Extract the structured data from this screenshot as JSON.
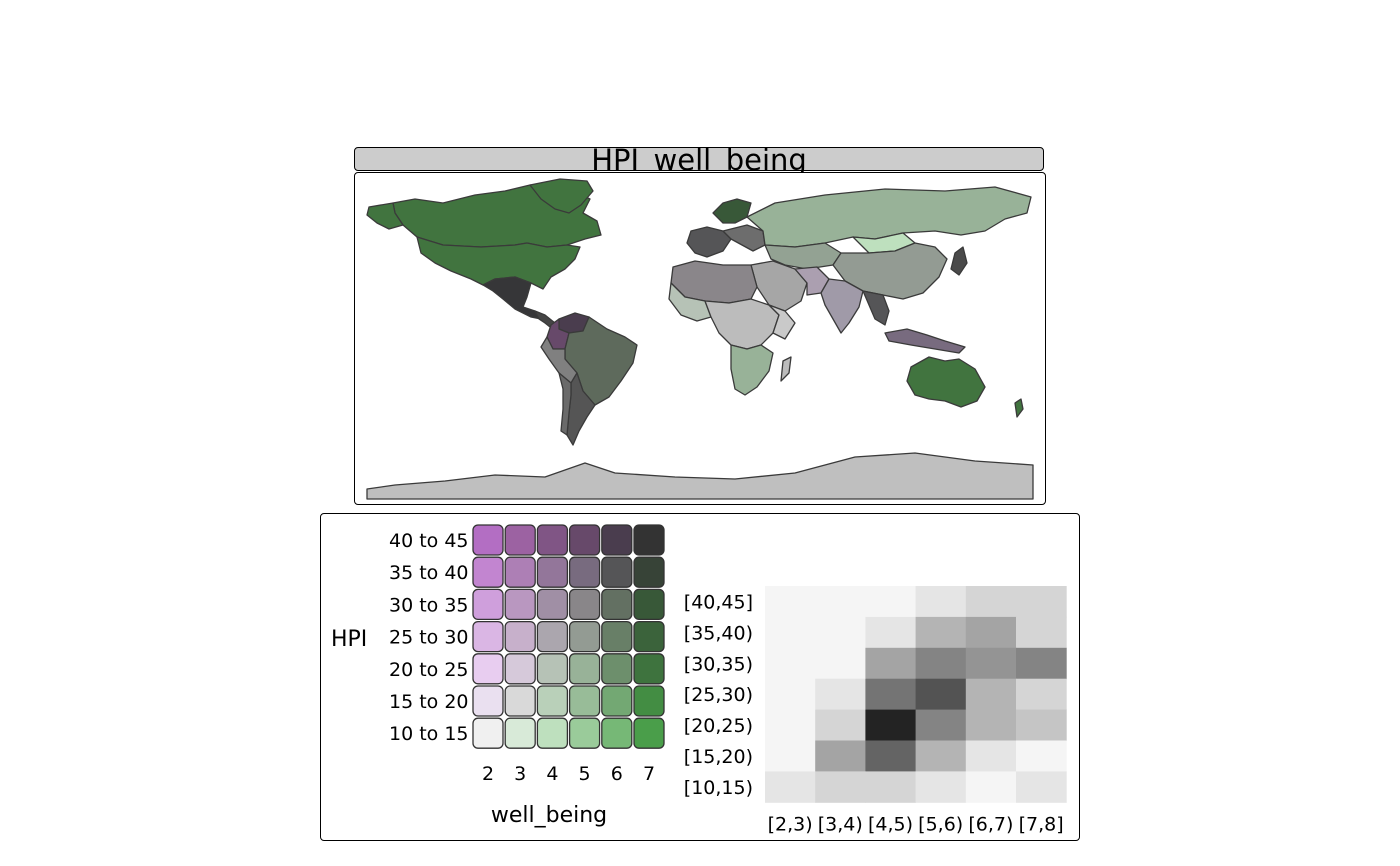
{
  "map": {
    "title": "HPI_well_being"
  },
  "legend": {
    "y_title": "HPI",
    "x_title": "well_being",
    "row_labels": [
      "40 to 45",
      "35 to 40",
      "30 to 35",
      "25 to 30",
      "20 to 25",
      "15 to 20",
      "10 to 15"
    ],
    "col_labels": [
      "2",
      "3",
      "4",
      "5",
      "6",
      "7"
    ],
    "palette": [
      [
        "#b36ec3",
        "#9c62a2",
        "#805585",
        "#67496a",
        "#4a3d4e",
        "#333333"
      ],
      [
        "#c285d0",
        "#ad7fb5",
        "#93769a",
        "#786b7f",
        "#555557",
        "#374337"
      ],
      [
        "#cf9fdc",
        "#b997c0",
        "#a08fa5",
        "#898689",
        "#637062",
        "#385838"
      ],
      [
        "#dab6e4",
        "#c7b0cb",
        "#aba6ae",
        "#939b93",
        "#687f67",
        "#3b633b"
      ],
      [
        "#e8cdf0",
        "#d6c9da",
        "#b6c2b6",
        "#98b298",
        "#6d8f6c",
        "#3e733e"
      ],
      [
        "#eae0f0",
        "#d9d9d9",
        "#b9d0b9",
        "#98bc98",
        "#73a873",
        "#438d43"
      ],
      [
        "#f0f0f0",
        "#d8ead8",
        "#bee0be",
        "#9acb9a",
        "#76b876",
        "#4a9e4a"
      ]
    ]
  },
  "heatmap": {
    "row_labels": [
      "[40,45]",
      "[35,40)",
      "[30,35)",
      "[25,30)",
      "[20,25)",
      "[15,20)",
      "[10,15)"
    ],
    "col_labels": [
      "[2,3)",
      "[3,4)",
      "[4,5)",
      "[5,6)",
      "[6,7)",
      "[7,8]"
    ],
    "values": [
      [
        0,
        0,
        0,
        1,
        2,
        2
      ],
      [
        0,
        0,
        1,
        4,
        5,
        2
      ],
      [
        0,
        0,
        5,
        7,
        6,
        7
      ],
      [
        0,
        1,
        8,
        10,
        4,
        2
      ],
      [
        0,
        2,
        13,
        7,
        4,
        3
      ],
      [
        0,
        5,
        9,
        4,
        1,
        0
      ],
      [
        1,
        2,
        2,
        1,
        0,
        1
      ]
    ]
  }
}
